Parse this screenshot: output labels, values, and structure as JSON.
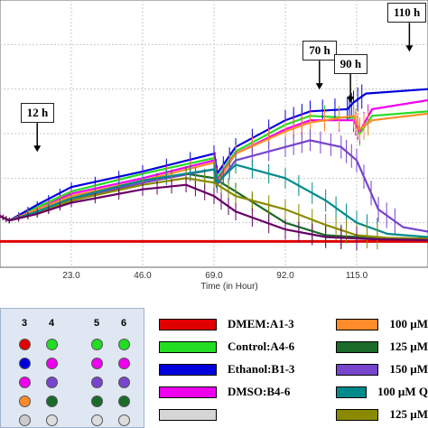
{
  "chart_data": {
    "type": "line",
    "xlabel": "Time (in Hour)",
    "ylabel": "",
    "xlim": [
      0,
      138
    ],
    "ylim": [
      0,
      6
    ],
    "x_ticks": [
      "23.0",
      "46.0",
      "69.0",
      "92.0",
      "115.0"
    ],
    "tick_values": [
      23,
      46,
      69,
      92,
      115
    ],
    "grid": true,
    "annotations": [
      {
        "label": "12 h",
        "x": 12,
        "y": 2.55
      },
      {
        "label": "70 h",
        "x": 103,
        "y": 3.95
      },
      {
        "label": "90 h",
        "x": 113,
        "y": 3.65
      },
      {
        "label": "110 h",
        "x": 132,
        "y": 4.8
      }
    ],
    "series": [
      {
        "name": "DMEM:A1-3",
        "color": "#e00000",
        "points": [
          [
            0,
            0.58
          ],
          [
            138,
            0.58
          ]
        ]
      },
      {
        "name": "Control:A4-6",
        "color": "#22dd22",
        "points": [
          [
            0,
            1.15
          ],
          [
            3,
            1.05
          ],
          [
            12,
            1.35
          ],
          [
            23,
            1.7
          ],
          [
            46,
            2.1
          ],
          [
            69,
            2.45
          ],
          [
            70,
            2.0
          ],
          [
            76,
            2.6
          ],
          [
            92,
            3.2
          ],
          [
            100,
            3.4
          ],
          [
            114,
            3.35
          ],
          [
            116,
            3.0
          ],
          [
            120,
            3.4
          ],
          [
            138,
            3.5
          ]
        ]
      },
      {
        "name": "Ethanol:B1-3",
        "color": "#0000dd",
        "points": [
          [
            0,
            1.15
          ],
          [
            3,
            1.05
          ],
          [
            12,
            1.4
          ],
          [
            23,
            1.8
          ],
          [
            46,
            2.15
          ],
          [
            69,
            2.55
          ],
          [
            70,
            2.1
          ],
          [
            76,
            2.7
          ],
          [
            92,
            3.3
          ],
          [
            100,
            3.5
          ],
          [
            112,
            3.55
          ],
          [
            114,
            3.7
          ],
          [
            118,
            3.9
          ],
          [
            138,
            4.0
          ]
        ]
      },
      {
        "name": "DMSO:B4-6",
        "color": "#ee00ee",
        "points": [
          [
            0,
            1.15
          ],
          [
            3,
            1.05
          ],
          [
            12,
            1.3
          ],
          [
            23,
            1.65
          ],
          [
            46,
            2.0
          ],
          [
            69,
            2.4
          ],
          [
            70,
            1.95
          ],
          [
            76,
            2.55
          ],
          [
            92,
            3.1
          ],
          [
            100,
            3.3
          ],
          [
            114,
            3.3
          ],
          [
            116,
            3.05
          ],
          [
            120,
            3.55
          ],
          [
            138,
            3.75
          ]
        ]
      },
      {
        "name": "100 µM Q",
        "color": "#ff8c2a",
        "points": [
          [
            0,
            1.15
          ],
          [
            3,
            1.05
          ],
          [
            12,
            1.3
          ],
          [
            23,
            1.6
          ],
          [
            46,
            1.95
          ],
          [
            69,
            2.35
          ],
          [
            70,
            1.9
          ],
          [
            76,
            2.55
          ],
          [
            92,
            3.05
          ],
          [
            100,
            3.25
          ],
          [
            114,
            3.4
          ],
          [
            116,
            3.1
          ],
          [
            120,
            3.3
          ],
          [
            138,
            3.45
          ]
        ]
      },
      {
        "name": "125 µM Q",
        "color": "#1a6b2a",
        "points": [
          [
            0,
            1.15
          ],
          [
            3,
            1.05
          ],
          [
            12,
            1.2
          ],
          [
            23,
            1.5
          ],
          [
            46,
            1.9
          ],
          [
            60,
            2.1
          ],
          [
            69,
            2.0
          ],
          [
            76,
            1.7
          ],
          [
            92,
            1.0
          ],
          [
            105,
            0.72
          ],
          [
            120,
            0.66
          ],
          [
            138,
            0.64
          ]
        ]
      },
      {
        "name": "150 µM Q",
        "color": "#7744cc",
        "points": [
          [
            0,
            1.15
          ],
          [
            3,
            1.05
          ],
          [
            12,
            1.25
          ],
          [
            23,
            1.55
          ],
          [
            46,
            1.9
          ],
          [
            69,
            2.2
          ],
          [
            70,
            1.85
          ],
          [
            76,
            2.4
          ],
          [
            92,
            2.7
          ],
          [
            100,
            2.85
          ],
          [
            110,
            2.7
          ],
          [
            115,
            2.4
          ],
          [
            122,
            1.3
          ],
          [
            130,
            0.9
          ],
          [
            138,
            0.8
          ]
        ]
      },
      {
        "name": "100 µM Q",
        "color": "#008a8a",
        "points": [
          [
            0,
            1.15
          ],
          [
            3,
            1.05
          ],
          [
            12,
            1.25
          ],
          [
            23,
            1.55
          ],
          [
            46,
            1.95
          ],
          [
            69,
            2.2
          ],
          [
            70,
            1.9
          ],
          [
            76,
            2.3
          ],
          [
            92,
            2.0
          ],
          [
            105,
            1.5
          ],
          [
            115,
            1.0
          ],
          [
            125,
            0.75
          ],
          [
            138,
            0.68
          ]
        ]
      },
      {
        "name": "125 µM Q",
        "color": "#8a8a00",
        "points": [
          [
            0,
            1.15
          ],
          [
            3,
            1.05
          ],
          [
            12,
            1.2
          ],
          [
            23,
            1.5
          ],
          [
            46,
            1.85
          ],
          [
            60,
            2.0
          ],
          [
            69,
            1.9
          ],
          [
            76,
            1.6
          ],
          [
            92,
            1.3
          ],
          [
            105,
            0.95
          ],
          [
            115,
            0.72
          ],
          [
            125,
            0.66
          ],
          [
            138,
            0.64
          ]
        ]
      },
      {
        "name": "",
        "color": "#660066",
        "points": [
          [
            0,
            1.15
          ],
          [
            3,
            1.05
          ],
          [
            12,
            1.2
          ],
          [
            23,
            1.45
          ],
          [
            46,
            1.75
          ],
          [
            60,
            1.85
          ],
          [
            69,
            1.6
          ],
          [
            76,
            1.25
          ],
          [
            92,
            0.85
          ],
          [
            105,
            0.68
          ],
          [
            120,
            0.63
          ],
          [
            138,
            0.61
          ]
        ]
      }
    ]
  },
  "plate": {
    "columns": [
      "3",
      "4",
      "5",
      "6"
    ],
    "rows": [
      [
        "#e00000",
        "#22dd22",
        "#22dd22",
        "#22dd22"
      ],
      [
        "#0000dd",
        "#ee00ee",
        "#ee00ee",
        "#ee00ee"
      ],
      [
        "#ee00ee",
        "#7744cc",
        "#7744cc",
        "#7744cc"
      ],
      [
        "#ff8c2a",
        "#1a6b2a",
        "#1a6b2a",
        "#1a6b2a"
      ],
      [
        "#cccccc",
        "#dddddd",
        "#dddddd",
        "#dddddd"
      ]
    ]
  },
  "legend": {
    "left": [
      {
        "label": "DMEM:A1-3",
        "color": "#e00000"
      },
      {
        "label": "Control:A4-6",
        "color": "#22dd22"
      },
      {
        "label": "Ethanol:B1-3",
        "color": "#0000dd"
      },
      {
        "label": "DMSO:B4-6",
        "color": "#ee00ee"
      },
      {
        "label": "",
        "color": "#d6d6d6"
      }
    ],
    "right": [
      {
        "label": "100 µM",
        "color": "#ff8c2a"
      },
      {
        "label": "125 µM",
        "color": "#1a6b2a"
      },
      {
        "label": "150 µM",
        "color": "#7744cc"
      },
      {
        "label": "100 µM Q",
        "color": "#008a8a"
      },
      {
        "label": "125 µM",
        "color": "#8a8a00"
      }
    ]
  }
}
